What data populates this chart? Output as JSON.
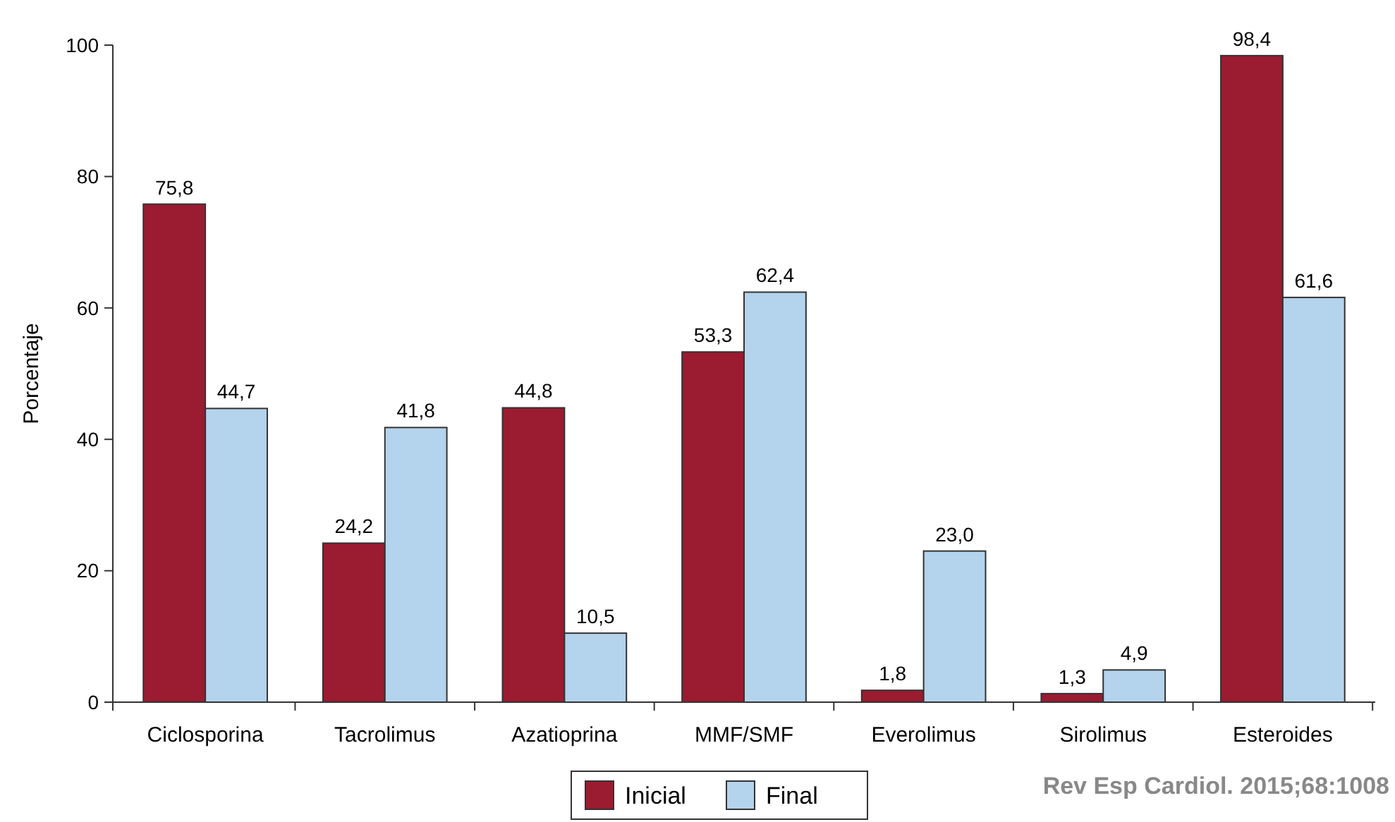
{
  "chart_data": {
    "type": "bar",
    "ylabel": "Porcentaje",
    "categories": [
      "Ciclosporina",
      "Tacrolimus",
      "Azatioprina",
      "MMF/SMF",
      "Everolimus",
      "Sirolimus",
      "Esteroides"
    ],
    "series": [
      {
        "name": "Inicial",
        "color": "#9b1b30",
        "values": [
          75.8,
          24.2,
          44.8,
          53.3,
          1.8,
          1.3,
          98.4
        ],
        "value_labels": [
          "75,8",
          "24,2",
          "44,8",
          "53,3",
          "1,8",
          "1,3",
          "98,4"
        ]
      },
      {
        "name": "Final",
        "color": "#b4d3ec",
        "values": [
          44.7,
          41.8,
          10.5,
          62.4,
          23.0,
          4.9,
          61.6
        ],
        "value_labels": [
          "44,7",
          "41,8",
          "10,5",
          "62,4",
          "23,0",
          "4,9",
          "61,6"
        ]
      }
    ],
    "ylim": [
      0,
      100
    ],
    "yticks": [
      0,
      20,
      40,
      60,
      80,
      100
    ],
    "grid": false,
    "legend": "bottom",
    "annotations": [
      "Rev Esp Cardiol. 2015;68:1008"
    ]
  }
}
